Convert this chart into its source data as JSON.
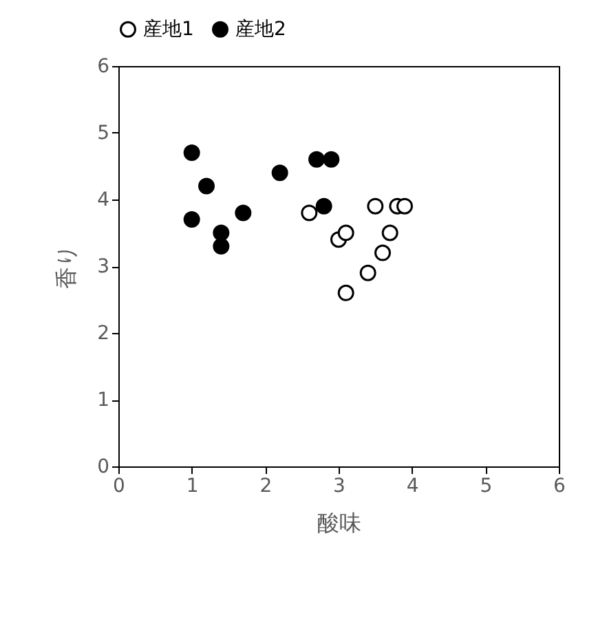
{
  "chart_data": {
    "type": "scatter",
    "xlabel": "酸味",
    "ylabel": "香り",
    "xlim": [
      0,
      6
    ],
    "ylim": [
      0,
      6
    ],
    "xticks": [
      0,
      1,
      2,
      3,
      4,
      5,
      6
    ],
    "yticks": [
      0,
      1,
      2,
      3,
      4,
      5,
      6
    ],
    "grid": false,
    "legend": "top",
    "marker": "circle",
    "series": [
      {
        "name": "産地1",
        "color": "#ffffff",
        "x": [
          2.6,
          3.5,
          3.8,
          3.9,
          3.0,
          3.1,
          3.7,
          3.6,
          3.4,
          3.1
        ],
        "values": [
          3.8,
          3.9,
          3.9,
          3.9,
          3.4,
          3.5,
          3.5,
          3.2,
          2.9,
          2.6
        ]
      },
      {
        "name": "産地2",
        "color": "#000000",
        "x": [
          1.0,
          1.2,
          1.0,
          1.4,
          1.4,
          1.7,
          2.2,
          2.7,
          2.9,
          2.8
        ],
        "values": [
          4.7,
          4.2,
          3.7,
          3.5,
          3.3,
          3.8,
          4.4,
          4.6,
          4.6,
          3.9
        ]
      }
    ]
  }
}
